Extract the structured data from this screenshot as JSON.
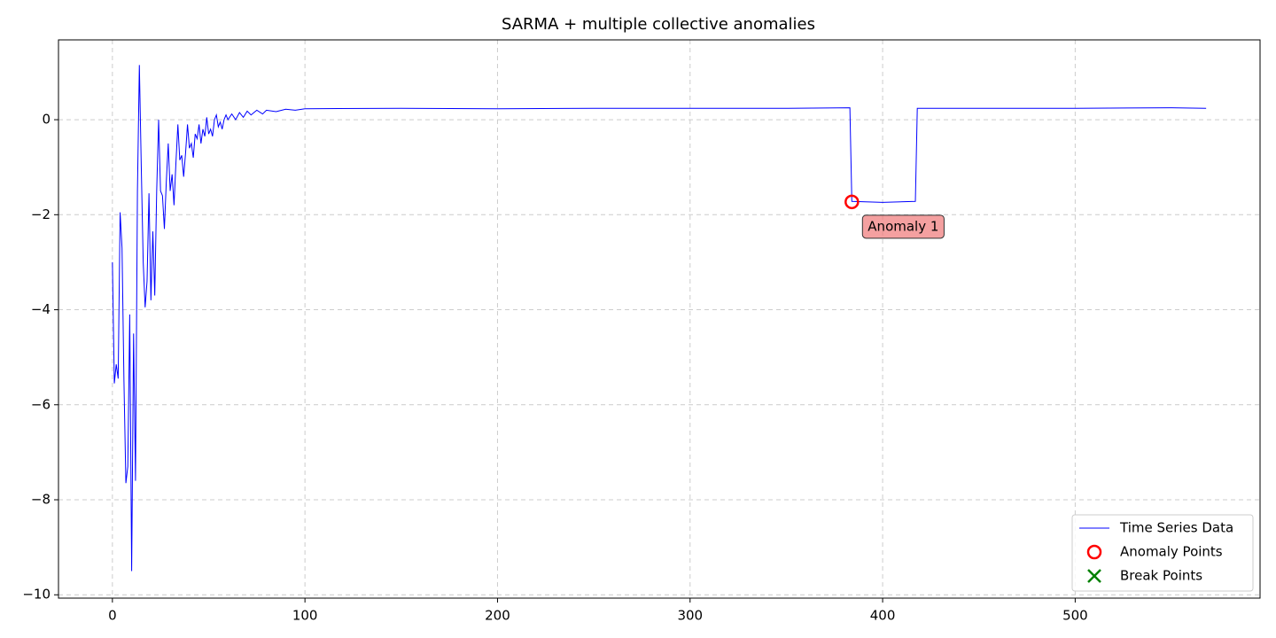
{
  "chart_data": {
    "type": "line",
    "title": "SARMA + multiple collective anomalies",
    "series": [
      {
        "name": "Time Series Data",
        "color": "#0000ff",
        "x": [
          0,
          1,
          2,
          3,
          4,
          5,
          6,
          7,
          8,
          9,
          10,
          11,
          12,
          13,
          14,
          15,
          16,
          17,
          18,
          19,
          20,
          21,
          22,
          23,
          24,
          25,
          26,
          27,
          28,
          29,
          30,
          31,
          32,
          33,
          34,
          35,
          36,
          37,
          38,
          39,
          40,
          41,
          42,
          43,
          44,
          45,
          46,
          47,
          48,
          49,
          50,
          51,
          52,
          53,
          54,
          55,
          56,
          57,
          58,
          59,
          60,
          62,
          64,
          66,
          68,
          70,
          72,
          75,
          78,
          80,
          85,
          90,
          95,
          100,
          150,
          200,
          250,
          300,
          350,
          383,
          384,
          400,
          417,
          418,
          450,
          500,
          550,
          568
        ],
        "values": [
          -3.0,
          -5.55,
          -5.15,
          -5.45,
          -1.95,
          -2.7,
          -5.5,
          -7.65,
          -7.3,
          -4.1,
          -9.5,
          -4.5,
          -7.6,
          -1.5,
          1.15,
          -1.0,
          -3.0,
          -3.95,
          -3.4,
          -1.55,
          -3.8,
          -2.35,
          -3.7,
          -1.5,
          0.0,
          -1.5,
          -1.6,
          -2.3,
          -1.3,
          -0.5,
          -1.5,
          -1.15,
          -1.8,
          -0.9,
          -0.1,
          -0.85,
          -0.75,
          -1.2,
          -0.7,
          -0.1,
          -0.6,
          -0.5,
          -0.8,
          -0.3,
          -0.4,
          -0.1,
          -0.5,
          -0.2,
          -0.35,
          0.05,
          -0.3,
          -0.2,
          -0.35,
          0.0,
          0.1,
          -0.15,
          -0.05,
          -0.2,
          0.0,
          0.1,
          0.0,
          0.12,
          0.0,
          0.15,
          0.05,
          0.18,
          0.1,
          0.2,
          0.12,
          0.2,
          0.17,
          0.22,
          0.2,
          0.23,
          0.24,
          0.23,
          0.24,
          0.24,
          0.24,
          0.25,
          -1.72,
          -1.74,
          -1.72,
          0.24,
          0.24,
          0.24,
          0.25,
          0.24
        ]
      }
    ],
    "anomalies": {
      "name": "Anomaly Points",
      "color": "#ff0000",
      "x": [
        384
      ],
      "values": [
        -1.73
      ]
    },
    "breaks": {
      "name": "Break Points",
      "color": "#008000",
      "x": [],
      "values": []
    },
    "annotations": [
      {
        "text": "Anomaly 1",
        "x": 384,
        "y": -1.73
      }
    ],
    "xlim": [
      -28,
      596
    ],
    "ylim": [
      -10.07,
      1.68
    ],
    "xticks": [
      0,
      100,
      200,
      300,
      400,
      500
    ],
    "yticks": [
      {
        "value": -10,
        "label": "−10"
      },
      {
        "value": -8,
        "label": "−8"
      },
      {
        "value": -6,
        "label": "−6"
      },
      {
        "value": -4,
        "label": "−4"
      },
      {
        "value": -2,
        "label": "−2"
      },
      0
    ],
    "grid": true,
    "legend": "lower right"
  }
}
